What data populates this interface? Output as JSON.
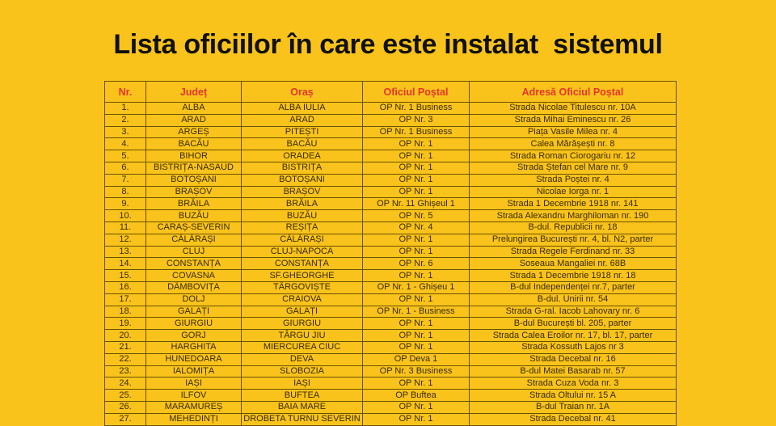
{
  "header": {
    "title": "Lista oficiilor în care este instalat  sistemul"
  },
  "table": {
    "header": [
      "Nr.",
      "Județ",
      "Oraș",
      "Oficiul Poștal",
      "Adresă Oficiul Poștal"
    ],
    "rows": [
      [
        "1.",
        "ALBA",
        "ALBA IULIA",
        "OP Nr. 1 Business",
        "Strada Nicolae Titulescu nr. 10A"
      ],
      [
        "2.",
        "ARAD",
        "ARAD",
        "OP Nr. 3",
        "Strada Mihai Eminescu nr. 26"
      ],
      [
        "3.",
        "ARGEȘ",
        "PITEȘTI",
        "OP Nr. 1 Business",
        "Piața Vasile Milea nr. 4"
      ],
      [
        "4.",
        "BACĂU",
        "BACĂU",
        "OP Nr. 1",
        "Calea Mărășești nr. 8"
      ],
      [
        "5.",
        "BIHOR",
        "ORADEA",
        "OP Nr. 1",
        "Strada Roman Ciorogariu  nr. 12"
      ],
      [
        "6.",
        "BISTRIȚA-NASAUD",
        "BISTRIȚA",
        "OP Nr. 1",
        "Strada Ștefan cel Mare nr. 9"
      ],
      [
        "7.",
        "BOTOȘANI",
        "BOTOȘANI",
        "OP Nr. 1",
        "Strada Poștei nr. 4"
      ],
      [
        "8.",
        "BRAȘOV",
        "BRAȘOV",
        "OP Nr. 1",
        "Nicolae Iorga nr. 1"
      ],
      [
        "9.",
        "BRĂILA",
        "BRĂILA",
        "OP Nr. 11 Ghișeul 1",
        "Strada 1 Decembrie 1918 nr. 141"
      ],
      [
        "10.",
        "BUZĂU",
        "BUZĂU",
        "OP Nr. 5",
        "Strada Alexandru Marghiloman nr. 190"
      ],
      [
        "11.",
        "CARAȘ-SEVERIN",
        "REȘIȚA",
        "OP Nr. 4",
        "B-dul. Republicii nr. 18"
      ],
      [
        "12.",
        "CĂLĂRAȘI",
        "CĂLĂRAȘI",
        "OP Nr. 1",
        "Prelungirea București nr. 4, bl. N2, parter"
      ],
      [
        "13.",
        "CLUJ",
        "CLUJ-NAPOCA",
        "OP Nr. 1",
        "Strada Regele Ferdinand nr. 33"
      ],
      [
        "14.",
        "CONSTANȚA",
        "CONSTANȚA",
        "OP Nr. 6",
        "Soseaua Mangaliei nr. 68B"
      ],
      [
        "15.",
        "COVASNA",
        "SF.GHEORGHE",
        "OP Nr. 1",
        "Strada 1 Decembrie 1918 nr. 18"
      ],
      [
        "16.",
        "DÂMBOVIȚA",
        "TÂRGOVIȘTE",
        "OP Nr. 1 - Ghișeu 1",
        "B-dul Independenței nr.7, parter"
      ],
      [
        "17.",
        "DOLJ",
        "CRAIOVA",
        "OP Nr. 1",
        "B-dul. Unirii nr. 54"
      ],
      [
        "18.",
        "GALAȚI",
        "GALAȚI",
        "OP Nr. 1 - Business",
        "Strada G-ral. Iacob Lahovary nr. 6"
      ],
      [
        "19.",
        "GIURGIU",
        "GIURGIU",
        "OP Nr. 1",
        "B-dul București bl. 205, parter"
      ],
      [
        "20.",
        "GORJ",
        "TÂRGU JIU",
        "OP Nr. 1",
        "Strada Calea Eroilor nr. 17, bl. 17, parter"
      ],
      [
        "21.",
        "HARGHITA",
        "MIERCUREA CIUC",
        "OP Nr. 1",
        "Strada Kossuth Lajos nr 3"
      ],
      [
        "22.",
        "HUNEDOARA",
        "DEVA",
        "OP Deva 1",
        "Strada Decebal nr. 16"
      ],
      [
        "23.",
        "IALOMIȚA",
        "SLOBOZIA",
        "OP Nr. 3 Business",
        "B-dul Matei Basarab nr. 57"
      ],
      [
        "24.",
        "IAȘI",
        "IAȘI",
        "OP Nr. 1",
        "Strada Cuza Voda nr. 3"
      ],
      [
        "25.",
        "ILFOV",
        "BUFTEA",
        "OP Buftea",
        "Strada Oltului nr. 15 A"
      ],
      [
        "26.",
        "MARAMUREȘ",
        "BAIA MARE",
        "OP Nr. 1",
        "B-dul Traian nr. 1A"
      ],
      [
        "27.",
        "MEHEDINȚI",
        "DROBETA TURNU SEVERIN",
        "OP Nr. 1",
        "Strada Decebal nr. 41"
      ]
    ]
  }
}
